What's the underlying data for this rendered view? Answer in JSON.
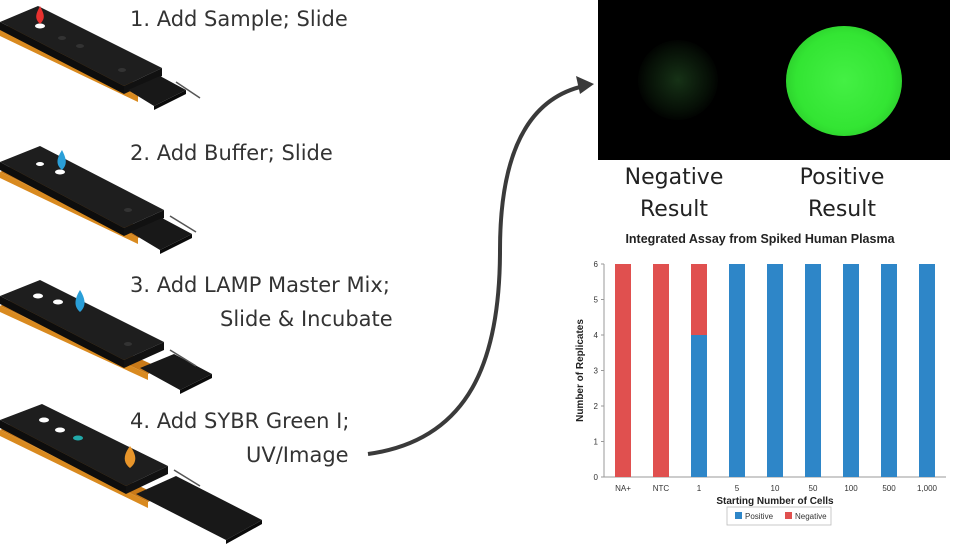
{
  "steps": [
    {
      "line1": "1. Add Sample; Slide",
      "line2": ""
    },
    {
      "line1": "2. Add Buffer; Slide",
      "line2": ""
    },
    {
      "line1": "3. Add LAMP Master Mix;",
      "line2": "Slide & Incubate"
    },
    {
      "line1": "4. Add SYBR Green I;",
      "line2": "UV/Image"
    }
  ],
  "drop_colors": [
    "#e8312f",
    "#2a9fd8",
    "#2a9fd8",
    "#e8952a"
  ],
  "results": {
    "negative_line1": "Negative",
    "negative_line2": "Result",
    "positive_line1": "Positive",
    "positive_line2": "Result"
  },
  "colors": {
    "device_top": "#1a1a1a",
    "device_base": "#d98a1f",
    "positive": "#2e86c8",
    "negative": "#e0504f",
    "glow": "#33e533"
  },
  "chart_data": {
    "type": "bar",
    "stacked": true,
    "title": "Integrated Assay from Spiked Human Plasma",
    "xlabel": "Starting Number of Cells",
    "ylabel": "Number of Replicates",
    "ylim": [
      0,
      6
    ],
    "yticks": [
      0,
      1,
      2,
      3,
      4,
      5,
      6
    ],
    "categories": [
      "NA+",
      "NTC",
      "1",
      "5",
      "10",
      "50",
      "100",
      "500",
      "1,000"
    ],
    "series": [
      {
        "name": "Positive",
        "values": [
          0,
          0,
          4,
          6,
          6,
          6,
          6,
          6,
          6
        ]
      },
      {
        "name": "Negative",
        "values": [
          6,
          6,
          2,
          0,
          0,
          0,
          0,
          0,
          0
        ]
      }
    ],
    "legend": "bottom",
    "grid": false
  }
}
